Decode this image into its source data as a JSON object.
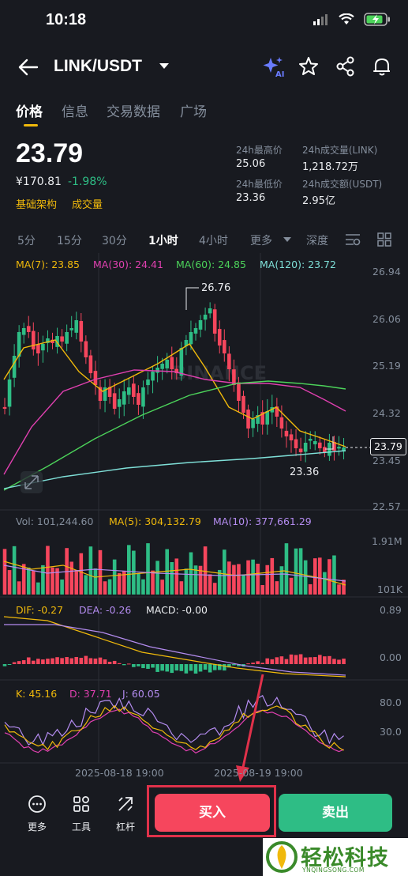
{
  "status_bar": {
    "time": "10:18"
  },
  "header": {
    "pair": "LINK/USDT"
  },
  "tabs": [
    {
      "label": "价格"
    },
    {
      "label": "信息"
    },
    {
      "label": "交易数据"
    },
    {
      "label": "广场"
    }
  ],
  "price": {
    "last": "23.79",
    "cny": "¥170.81",
    "change": "-1.98%",
    "link_basic": "基础架构",
    "link_volume": "成交量"
  },
  "stats": {
    "high_label": "24h最高价",
    "high": "25.06",
    "low_label": "24h最低价",
    "low": "23.36",
    "vol_link_label": "24h成交量(LINK)",
    "vol_link": "1,218.72万",
    "vol_usdt_label": "24h成交额(USDT)",
    "vol_usdt": "2.95亿"
  },
  "intervals": [
    "5分",
    "15分",
    "30分",
    "1小时",
    "4小时",
    "更多",
    "深度"
  ],
  "ma_legend": {
    "ma7": "MA(7): 23.85",
    "ma30": "MA(30): 24.41",
    "ma60": "MA(60): 24.85",
    "ma120": "MA(120): 23.72"
  },
  "price_axis": [
    "26.94",
    "26.06",
    "25.19",
    "24.32",
    "23.45",
    "22.57"
  ],
  "current_price_tag": "23.79",
  "annotations": {
    "high": "26.76",
    "low": "23.36"
  },
  "watermark_chart": "BINANCE",
  "volume": {
    "vol": "Vol: 101,244.60",
    "ma5": "MA(5): 304,132.79",
    "ma10": "MA(10): 377,661.29",
    "axis_top": "1.91M",
    "axis_bottom": "101K"
  },
  "macd": {
    "dif": "DIF: -0.27",
    "dea": "DEA: -0.26",
    "macd": "MACD: -0.00",
    "axis_top": "0.89",
    "axis_mid": "0.00"
  },
  "kdj": {
    "k": "K: 45.16",
    "d": "D: 37.71",
    "j": "J: 60.05",
    "axis_top": "80.0",
    "axis_mid": "30.0"
  },
  "time_axis": [
    "2025-08-18 19:00",
    "2025-08-19 19:00"
  ],
  "bottom_bar": {
    "more": "更多",
    "tools": "工具",
    "leverage": "杠杆",
    "buy": "买入",
    "sell": "卖出"
  },
  "watermark": {
    "title": "轻松科技",
    "sub": "YNQINGSONG.COM"
  },
  "colors": {
    "up": "#2ebd85",
    "down": "#f6465d",
    "accent": "#f0b90b",
    "ma7": "#f0b90b",
    "ma30": "#e040b0",
    "ma60": "#4cd35a",
    "ma120": "#7fe0d8"
  }
}
